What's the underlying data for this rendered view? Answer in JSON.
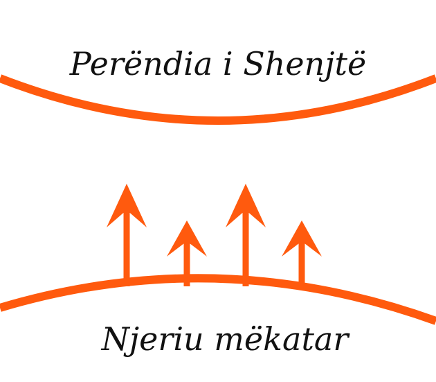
{
  "diagram": {
    "top_label": "Perëndia i Shenjtë",
    "bottom_label": "Njeriu mëkatar",
    "accent_color": "#ff5a0e",
    "text_color": "#111111",
    "arrows": [
      {
        "size": "tall"
      },
      {
        "size": "short"
      },
      {
        "size": "tall"
      },
      {
        "size": "short"
      }
    ]
  }
}
